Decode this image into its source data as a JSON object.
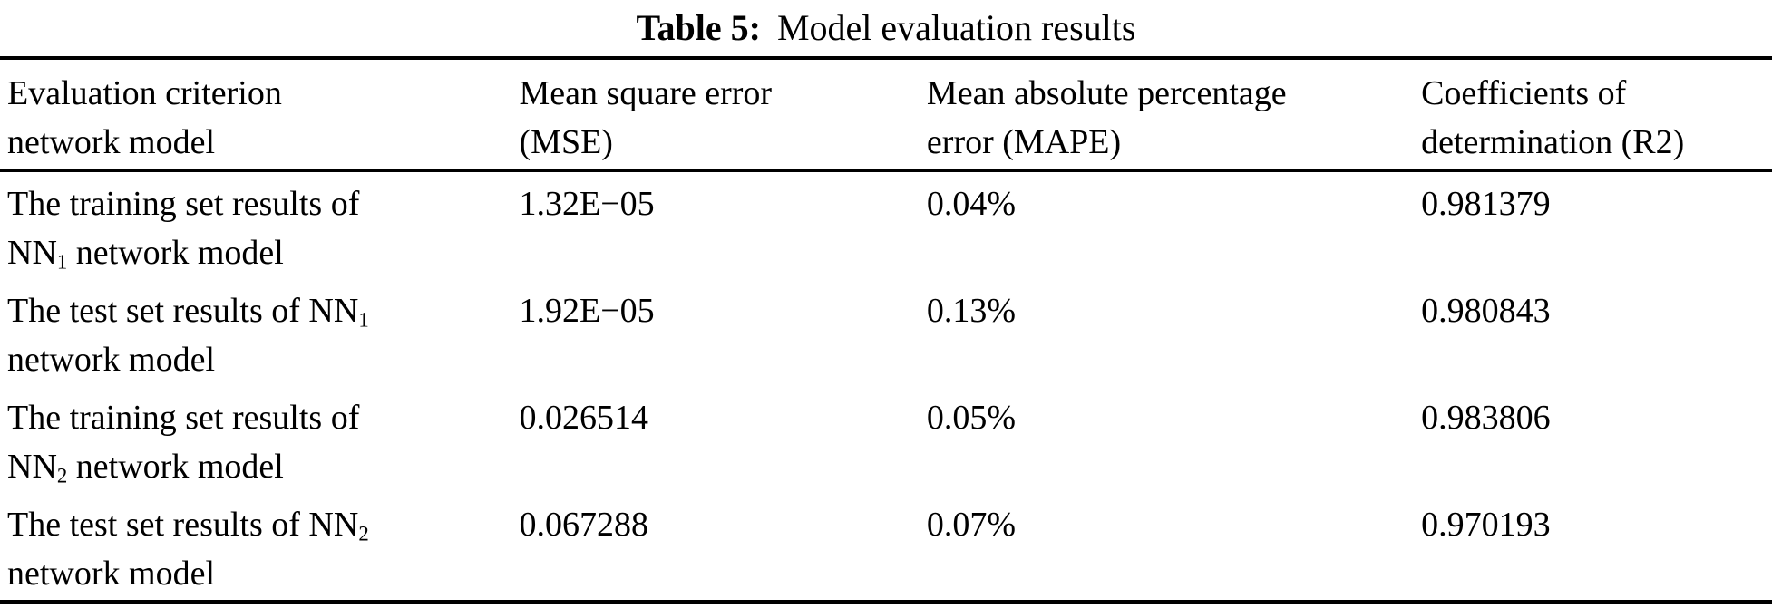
{
  "caption": {
    "label": "Table 5:",
    "text": "Model evaluation results"
  },
  "table": {
    "columns": [
      {
        "line1": "Evaluation criterion",
        "line2": "network model"
      },
      {
        "line1": "Mean square error",
        "line2": "(MSE)"
      },
      {
        "line1": "Mean absolute percentage",
        "line2": "error (MAPE)"
      },
      {
        "line1": "Coefficients of",
        "line2": "determination (R2)"
      }
    ],
    "rows": [
      {
        "criterion": {
          "line1": {
            "pre": "The training set results of"
          },
          "line2": {
            "pre": "NN",
            "sub": "1",
            "post": " network model"
          }
        },
        "mse": "1.32E−05",
        "mape": "0.04%",
        "r2": "0.981379"
      },
      {
        "criterion": {
          "line1": {
            "pre": "The test set results of NN",
            "sub": "1"
          },
          "line2": {
            "pre": "network model"
          }
        },
        "mse": "1.92E−05",
        "mape": "0.13%",
        "r2": "0.980843"
      },
      {
        "criterion": {
          "line1": {
            "pre": "The training set results of"
          },
          "line2": {
            "pre": "NN",
            "sub": "2",
            "post": " network model"
          }
        },
        "mse": "0.026514",
        "mape": "0.05%",
        "r2": "0.983806"
      },
      {
        "criterion": {
          "line1": {
            "pre": "The test set results of NN",
            "sub": "2"
          },
          "line2": {
            "pre": "network model"
          }
        },
        "mse": "0.067288",
        "mape": "0.07%",
        "r2": "0.970193"
      }
    ]
  },
  "chart_data": {
    "type": "table",
    "title": "Table 5: Model evaluation results",
    "columns": [
      "Evaluation criterion network model",
      "Mean square error (MSE)",
      "Mean absolute percentage error (MAPE)",
      "Coefficients of determination (R2)"
    ],
    "rows": [
      [
        "The training set results of NN1 network model",
        "1.32E−05",
        "0.04%",
        "0.981379"
      ],
      [
        "The test set results of NN1 network model",
        "1.92E−05",
        "0.13%",
        "0.980843"
      ],
      [
        "The training set results of NN2 network model",
        "0.026514",
        "0.05%",
        "0.983806"
      ],
      [
        "The test set results of NN2 network model",
        "0.067288",
        "0.07%",
        "0.970193"
      ]
    ]
  },
  "colors": {
    "text": "#000000",
    "background": "#ffffff",
    "rule": "#000000"
  }
}
